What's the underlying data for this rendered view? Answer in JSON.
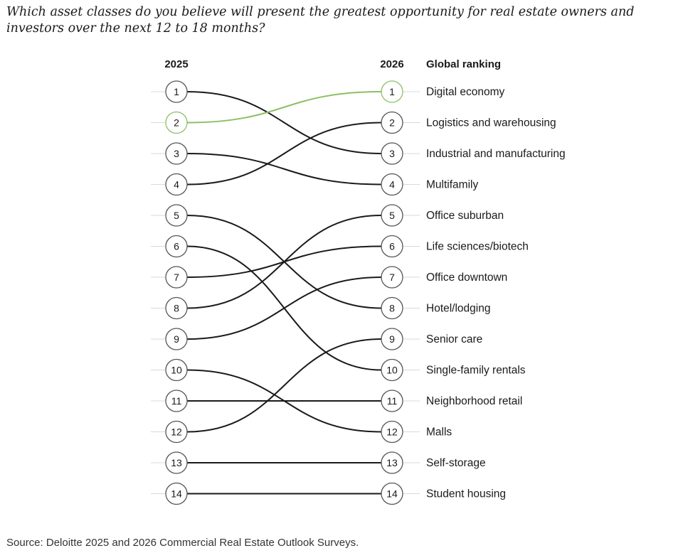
{
  "question": "Which asset classes do you believe will present the greatest opportunity for real estate owners and investors over the next 12 to 18 months?",
  "source": "Source: Deloitte 2025 and 2026 Commercial Real Estate Outlook Surveys.",
  "colors": {
    "line": "#1a1a1a",
    "highlight": "#8cc063",
    "guide": "#d9d9d9",
    "circle_stroke": "#555555"
  },
  "chart_data": {
    "type": "bump",
    "left_header": "2025",
    "right_header": "2026",
    "label_header": "Global ranking",
    "highlight_category": "Digital economy",
    "categories": [
      {
        "name": "Digital economy",
        "rank_2025": 2,
        "rank_2026": 1
      },
      {
        "name": "Logistics and warehousing",
        "rank_2025": 4,
        "rank_2026": 2
      },
      {
        "name": "Industrial and manufacturing",
        "rank_2025": 1,
        "rank_2026": 3
      },
      {
        "name": "Multifamily",
        "rank_2025": 3,
        "rank_2026": 4
      },
      {
        "name": "Office suburban",
        "rank_2025": 8,
        "rank_2026": 5
      },
      {
        "name": "Life sciences/biotech",
        "rank_2025": 7,
        "rank_2026": 6
      },
      {
        "name": "Office downtown",
        "rank_2025": 9,
        "rank_2026": 7
      },
      {
        "name": "Hotel/lodging",
        "rank_2025": 5,
        "rank_2026": 8
      },
      {
        "name": "Senior care",
        "rank_2025": 12,
        "rank_2026": 9
      },
      {
        "name": "Single-family rentals",
        "rank_2025": 6,
        "rank_2026": 10
      },
      {
        "name": "Neighborhood retail",
        "rank_2025": 11,
        "rank_2026": 11
      },
      {
        "name": "Malls",
        "rank_2025": 10,
        "rank_2026": 12
      },
      {
        "name": "Self-storage",
        "rank_2025": 13,
        "rank_2026": 13
      },
      {
        "name": "Student housing",
        "rank_2025": 14,
        "rank_2026": 14
      }
    ]
  }
}
